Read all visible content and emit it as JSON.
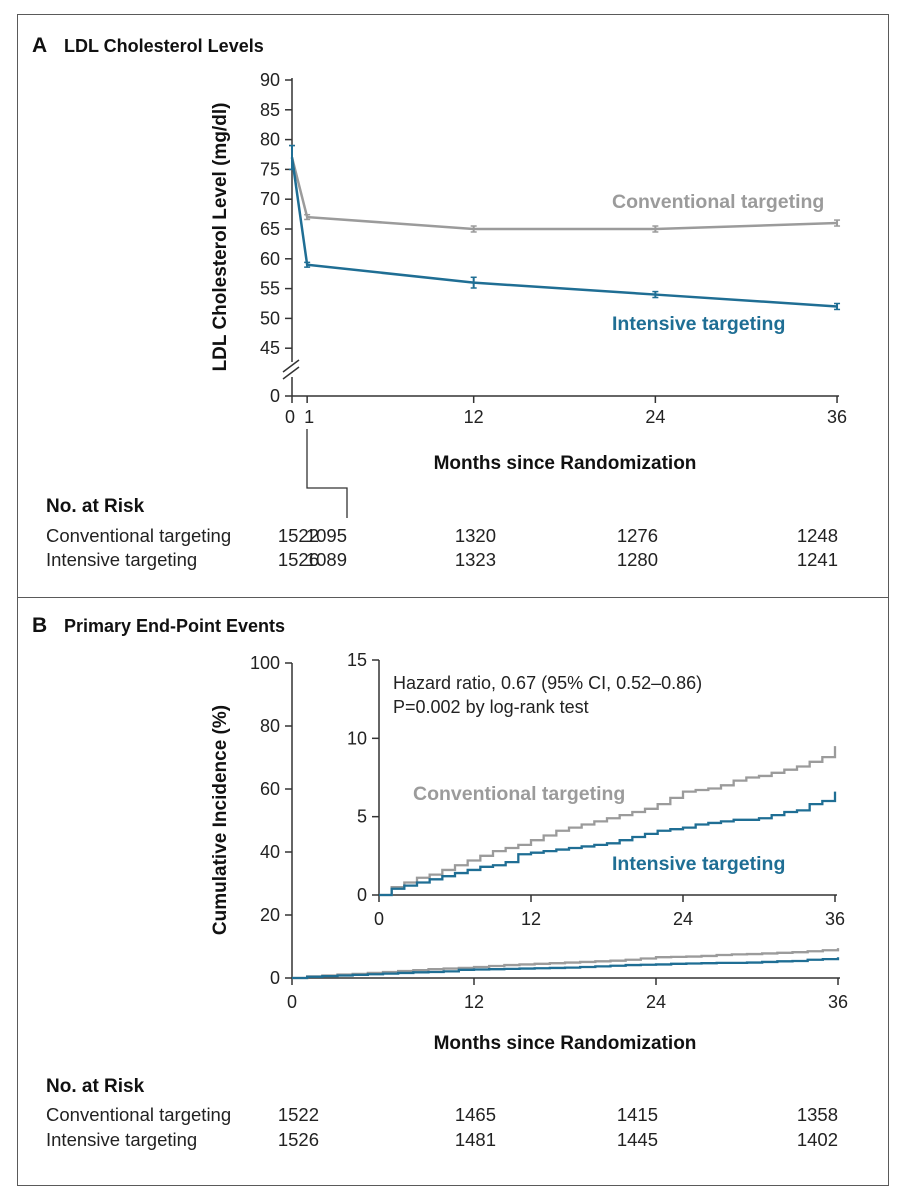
{
  "colors": {
    "conventional": "#9b9b9b",
    "intensive": "#1f6e94",
    "axis": "#333333"
  },
  "panel_a": {
    "letter": "A",
    "title": "LDL Cholesterol Levels"
  },
  "panel_b": {
    "letter": "B",
    "title": "Primary End-Point Events"
  },
  "chart_data": [
    {
      "type": "line",
      "title": "LDL Cholesterol Levels",
      "xlabel": "Months since Randomization",
      "ylabel": "LDL Cholesterol Level (mg/dl)",
      "x_ticks": [
        "0",
        "1",
        "12",
        "24",
        "36"
      ],
      "y_ticks": [
        "0",
        "45",
        "50",
        "55",
        "60",
        "65",
        "70",
        "75",
        "80",
        "85",
        "90"
      ],
      "ylim": [
        40,
        90
      ],
      "y_axis_break": true,
      "error_bars": true,
      "series": [
        {
          "name": "Conventional targeting",
          "x": [
            0,
            1,
            12,
            24,
            36
          ],
          "y": [
            77,
            67,
            65,
            65,
            66
          ],
          "err": [
            2,
            0.4,
            0.5,
            0.5,
            0.5
          ]
        },
        {
          "name": "Intensive targeting",
          "x": [
            0,
            1,
            12,
            24,
            36
          ],
          "y": [
            77,
            59,
            56,
            54,
            52
          ],
          "err": [
            2,
            0.4,
            0.9,
            0.5,
            0.5
          ]
        }
      ],
      "risk_table": {
        "header": "No. at Risk",
        "columns": [
          "0",
          "1",
          "12",
          "24",
          "36"
        ],
        "rows": [
          {
            "label": "Conventional targeting",
            "values": [
              "1522",
              "1095",
              "1320",
              "1276",
              "1248"
            ]
          },
          {
            "label": "Intensive targeting",
            "values": [
              "1526",
              "1089",
              "1323",
              "1280",
              "1241"
            ]
          }
        ]
      }
    },
    {
      "type": "line",
      "title": "Primary End-Point Events",
      "xlabel": "Months since Randomization",
      "ylabel": "Cumulative Incidence (%)",
      "x_ticks": [
        "0",
        "12",
        "24",
        "36"
      ],
      "y_ticks": [
        "0",
        "20",
        "40",
        "60",
        "80",
        "100"
      ],
      "xlim": [
        0,
        36
      ],
      "ylim": [
        0,
        100
      ],
      "step": true,
      "series": [
        {
          "name": "Conventional targeting",
          "x": [
            0,
            1,
            2,
            3,
            4,
            5,
            6,
            7,
            8,
            9,
            10,
            11,
            12,
            13,
            14,
            15,
            16,
            17,
            18,
            19,
            20,
            21,
            22,
            23,
            24,
            25,
            26,
            27,
            28,
            29,
            30,
            31,
            32,
            33,
            34,
            35,
            36
          ],
          "y": [
            0,
            0.5,
            0.8,
            1.1,
            1.3,
            1.6,
            1.9,
            2.2,
            2.5,
            2.8,
            3.0,
            3.2,
            3.5,
            3.8,
            4.1,
            4.3,
            4.5,
            4.7,
            4.9,
            5.1,
            5.3,
            5.5,
            5.8,
            6.2,
            6.6,
            6.7,
            6.8,
            7.0,
            7.3,
            7.5,
            7.6,
            7.8,
            8.0,
            8.2,
            8.5,
            8.8,
            9.5
          ]
        },
        {
          "name": "Intensive targeting",
          "x": [
            0,
            1,
            2,
            3,
            4,
            5,
            6,
            7,
            8,
            9,
            10,
            11,
            12,
            13,
            14,
            15,
            16,
            17,
            18,
            19,
            20,
            21,
            22,
            23,
            24,
            25,
            26,
            27,
            28,
            29,
            30,
            31,
            32,
            33,
            34,
            35,
            36
          ],
          "y": [
            0,
            0.4,
            0.6,
            0.8,
            1.0,
            1.2,
            1.4,
            1.6,
            1.8,
            1.9,
            2.1,
            2.6,
            2.7,
            2.8,
            2.9,
            3.0,
            3.1,
            3.2,
            3.3,
            3.5,
            3.7,
            3.9,
            4.1,
            4.2,
            4.3,
            4.5,
            4.6,
            4.7,
            4.8,
            4.8,
            4.9,
            5.1,
            5.3,
            5.4,
            5.8,
            6.0,
            6.6
          ]
        }
      ],
      "inset": {
        "xlim": [
          0,
          36
        ],
        "ylim": [
          0,
          15
        ],
        "x_ticks": [
          "0",
          "12",
          "24",
          "36"
        ],
        "y_ticks": [
          "0",
          "5",
          "10",
          "15"
        ],
        "annotation": [
          "Hazard ratio, 0.67 (95% CI, 0.52–0.86)",
          "P=0.002 by log-rank test"
        ]
      },
      "risk_table": {
        "header": "No. at Risk",
        "columns": [
          "0",
          "12",
          "24",
          "36"
        ],
        "rows": [
          {
            "label": "Conventional targeting",
            "values": [
              "1522",
              "1465",
              "1415",
              "1358"
            ]
          },
          {
            "label": "Intensive targeting",
            "values": [
              "1526",
              "1481",
              "1445",
              "1402"
            ]
          }
        ]
      }
    }
  ]
}
